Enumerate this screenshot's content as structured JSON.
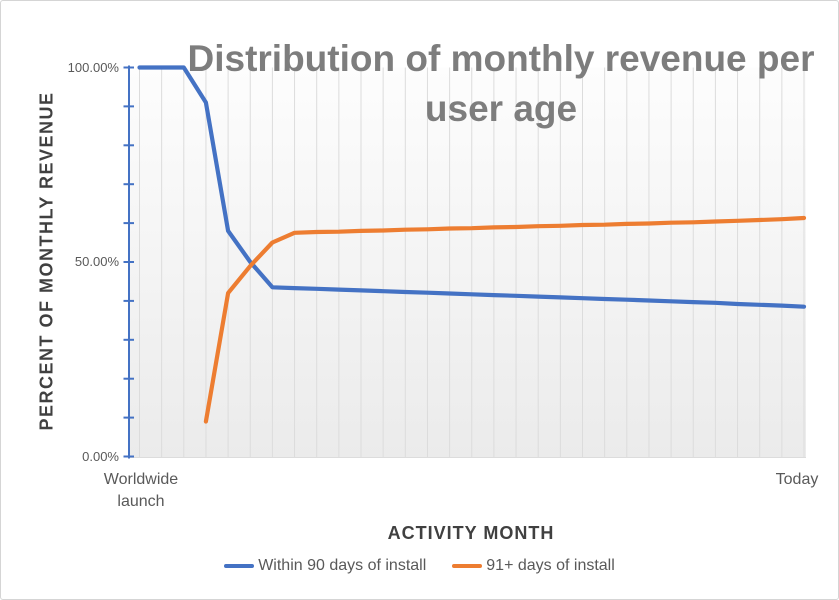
{
  "title": "Distribution of monthly revenue per user age",
  "y_axis": {
    "title": "PERCENT OF MONTHLY REVENUE",
    "tick_labels": [
      "100.00%",
      "50.00%",
      "0.00%"
    ]
  },
  "x_axis": {
    "title": "ACTIVITY MONTH",
    "first_label": "Worldwide launch",
    "last_label": "Today"
  },
  "colors": {
    "axis_line": "#4472C4",
    "gridline": "#DCDCDC",
    "baseline": "#DCDCDC",
    "title_text": "#7D7D7D",
    "axis_title_text": "#404040",
    "tick_label_text": "#595959",
    "plot_bg_top": "#FDFDFD",
    "plot_bg_bottom": "#EBEBEB",
    "frame_border": "#D5D5D5"
  },
  "chart_data": {
    "type": "line",
    "title": "Distribution of monthly revenue per user age",
    "xlabel": "ACTIVITY MONTH",
    "ylabel": "PERCENT OF MONTHLY REVENUE",
    "x_description": "31 consecutive activity months from worldwide launch to today; only the first and last categories are labeled",
    "x_tick_labels": [
      "Worldwide launch",
      "Today"
    ],
    "num_points": 31,
    "ylim": [
      0,
      100
    ],
    "y_unit": "percent",
    "y_tick_interval": 10,
    "y_labeled_ticks": [
      0,
      50,
      100
    ],
    "grid": "vertical-only",
    "legend_position": "bottom",
    "series": [
      {
        "name": "Within 90 days of install",
        "color": "#4472C4",
        "values": [
          100,
          100,
          100,
          91,
          58,
          50,
          43.5,
          43.3,
          43.1,
          42.9,
          42.7,
          42.5,
          42.3,
          42.1,
          41.9,
          41.7,
          41.5,
          41.3,
          41.1,
          40.9,
          40.7,
          40.5,
          40.3,
          40.1,
          39.9,
          39.7,
          39.5,
          39.2,
          39,
          38.8,
          38.5
        ]
      },
      {
        "name": "91+ days of install",
        "color": "#ED7D31",
        "values": [
          null,
          null,
          null,
          9,
          42,
          49,
          55,
          57.5,
          57.7,
          57.8,
          58,
          58.1,
          58.3,
          58.4,
          58.6,
          58.7,
          58.9,
          59,
          59.2,
          59.3,
          59.5,
          59.6,
          59.8,
          59.9,
          60.1,
          60.2,
          60.4,
          60.6,
          60.8,
          61,
          61.3
        ]
      }
    ]
  }
}
